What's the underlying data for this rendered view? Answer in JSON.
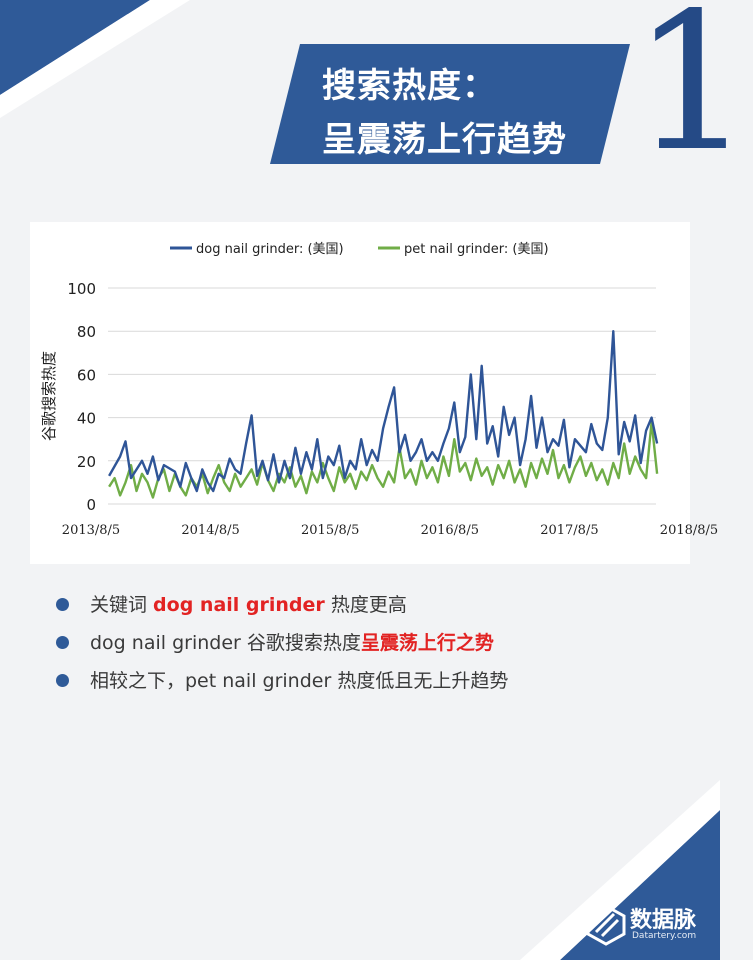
{
  "title": {
    "line1": "搜索热度：",
    "line2": "呈震荡上行趋势",
    "number": "1"
  },
  "chart_data": {
    "type": "line",
    "ylabel": "谷歌搜索热度",
    "ylim": [
      0,
      100
    ],
    "yticks": [
      "0",
      "20",
      "40",
      "60",
      "80",
      "100"
    ],
    "xticks": [
      "2013/8/5",
      "2014/8/5",
      "2015/8/5",
      "2016/8/5",
      "2017/8/5",
      "2018/8/5"
    ],
    "x_range_years": [
      2013.59,
      2018.59
    ],
    "legend_position": "top",
    "grid": true,
    "series": [
      {
        "name": "dog nail grinder: (美国)",
        "color": "#2f5597",
        "points": [
          [
            2013.6,
            13
          ],
          [
            2013.7,
            22
          ],
          [
            2013.75,
            29
          ],
          [
            2013.8,
            12
          ],
          [
            2013.9,
            20
          ],
          [
            2013.95,
            14
          ],
          [
            2014.0,
            22
          ],
          [
            2014.05,
            11
          ],
          [
            2014.1,
            18
          ],
          [
            2014.2,
            15
          ],
          [
            2014.25,
            8
          ],
          [
            2014.3,
            19
          ],
          [
            2014.35,
            12
          ],
          [
            2014.4,
            6
          ],
          [
            2014.45,
            16
          ],
          [
            2014.5,
            10
          ],
          [
            2014.55,
            6
          ],
          [
            2014.6,
            14
          ],
          [
            2014.65,
            12
          ],
          [
            2014.7,
            21
          ],
          [
            2014.75,
            16
          ],
          [
            2014.8,
            14
          ],
          [
            2014.85,
            28
          ],
          [
            2014.9,
            41
          ],
          [
            2014.95,
            13
          ],
          [
            2015.0,
            20
          ],
          [
            2015.05,
            11
          ],
          [
            2015.1,
            23
          ],
          [
            2015.15,
            10
          ],
          [
            2015.2,
            20
          ],
          [
            2015.25,
            12
          ],
          [
            2015.3,
            26
          ],
          [
            2015.35,
            14
          ],
          [
            2015.4,
            24
          ],
          [
            2015.45,
            16
          ],
          [
            2015.5,
            30
          ],
          [
            2015.55,
            12
          ],
          [
            2015.6,
            22
          ],
          [
            2015.65,
            18
          ],
          [
            2015.7,
            27
          ],
          [
            2015.75,
            12
          ],
          [
            2015.8,
            20
          ],
          [
            2015.85,
            16
          ],
          [
            2015.9,
            30
          ],
          [
            2015.95,
            18
          ],
          [
            2016.0,
            25
          ],
          [
            2016.05,
            20
          ],
          [
            2016.1,
            35
          ],
          [
            2016.15,
            45
          ],
          [
            2016.2,
            54
          ],
          [
            2016.25,
            24
          ],
          [
            2016.3,
            32
          ],
          [
            2016.35,
            20
          ],
          [
            2016.4,
            24
          ],
          [
            2016.45,
            30
          ],
          [
            2016.5,
            20
          ],
          [
            2016.55,
            24
          ],
          [
            2016.6,
            20
          ],
          [
            2016.65,
            28
          ],
          [
            2016.7,
            35
          ],
          [
            2016.75,
            47
          ],
          [
            2016.8,
            24
          ],
          [
            2016.85,
            31
          ],
          [
            2016.9,
            60
          ],
          [
            2016.95,
            30
          ],
          [
            2017.0,
            64
          ],
          [
            2017.05,
            28
          ],
          [
            2017.1,
            36
          ],
          [
            2017.15,
            22
          ],
          [
            2017.2,
            45
          ],
          [
            2017.25,
            32
          ],
          [
            2017.3,
            40
          ],
          [
            2017.35,
            18
          ],
          [
            2017.4,
            30
          ],
          [
            2017.45,
            50
          ],
          [
            2017.5,
            26
          ],
          [
            2017.55,
            40
          ],
          [
            2017.6,
            24
          ],
          [
            2017.65,
            30
          ],
          [
            2017.7,
            27
          ],
          [
            2017.75,
            39
          ],
          [
            2017.8,
            17
          ],
          [
            2017.85,
            30
          ],
          [
            2017.9,
            27
          ],
          [
            2017.95,
            24
          ],
          [
            2018.0,
            37
          ],
          [
            2018.05,
            28
          ],
          [
            2018.1,
            25
          ],
          [
            2018.15,
            40
          ],
          [
            2018.2,
            80
          ],
          [
            2018.25,
            23
          ],
          [
            2018.3,
            38
          ],
          [
            2018.35,
            29
          ],
          [
            2018.4,
            41
          ],
          [
            2018.45,
            19
          ],
          [
            2018.5,
            34
          ],
          [
            2018.55,
            40
          ],
          [
            2018.6,
            28
          ]
        ]
      },
      {
        "name": "pet nail grinder: (美国)",
        "color": "#70ad47",
        "points": [
          [
            2013.6,
            8
          ],
          [
            2013.65,
            12
          ],
          [
            2013.7,
            4
          ],
          [
            2013.75,
            10
          ],
          [
            2013.8,
            18
          ],
          [
            2013.85,
            6
          ],
          [
            2013.9,
            14
          ],
          [
            2013.95,
            10
          ],
          [
            2014.0,
            3
          ],
          [
            2014.05,
            12
          ],
          [
            2014.1,
            16
          ],
          [
            2014.15,
            6
          ],
          [
            2014.2,
            14
          ],
          [
            2014.25,
            8
          ],
          [
            2014.3,
            4
          ],
          [
            2014.35,
            12
          ],
          [
            2014.4,
            8
          ],
          [
            2014.45,
            14
          ],
          [
            2014.5,
            5
          ],
          [
            2014.55,
            12
          ],
          [
            2014.6,
            18
          ],
          [
            2014.65,
            10
          ],
          [
            2014.7,
            6
          ],
          [
            2014.75,
            14
          ],
          [
            2014.8,
            8
          ],
          [
            2014.85,
            12
          ],
          [
            2014.9,
            16
          ],
          [
            2014.95,
            9
          ],
          [
            2015.0,
            19
          ],
          [
            2015.05,
            11
          ],
          [
            2015.1,
            6
          ],
          [
            2015.15,
            14
          ],
          [
            2015.2,
            10
          ],
          [
            2015.25,
            17
          ],
          [
            2015.3,
            8
          ],
          [
            2015.35,
            13
          ],
          [
            2015.4,
            5
          ],
          [
            2015.45,
            15
          ],
          [
            2015.5,
            10
          ],
          [
            2015.55,
            19
          ],
          [
            2015.6,
            12
          ],
          [
            2015.65,
            6
          ],
          [
            2015.7,
            17
          ],
          [
            2015.75,
            10
          ],
          [
            2015.8,
            14
          ],
          [
            2015.85,
            7
          ],
          [
            2015.9,
            15
          ],
          [
            2015.95,
            11
          ],
          [
            2016.0,
            18
          ],
          [
            2016.05,
            12
          ],
          [
            2016.1,
            8
          ],
          [
            2016.15,
            15
          ],
          [
            2016.2,
            10
          ],
          [
            2016.25,
            26
          ],
          [
            2016.3,
            12
          ],
          [
            2016.35,
            16
          ],
          [
            2016.4,
            9
          ],
          [
            2016.45,
            20
          ],
          [
            2016.5,
            12
          ],
          [
            2016.55,
            17
          ],
          [
            2016.6,
            10
          ],
          [
            2016.65,
            22
          ],
          [
            2016.7,
            13
          ],
          [
            2016.75,
            30
          ],
          [
            2016.8,
            15
          ],
          [
            2016.85,
            19
          ],
          [
            2016.9,
            11
          ],
          [
            2016.95,
            21
          ],
          [
            2017.0,
            13
          ],
          [
            2017.05,
            17
          ],
          [
            2017.1,
            9
          ],
          [
            2017.15,
            18
          ],
          [
            2017.2,
            12
          ],
          [
            2017.25,
            20
          ],
          [
            2017.3,
            10
          ],
          [
            2017.35,
            16
          ],
          [
            2017.4,
            8
          ],
          [
            2017.45,
            19
          ],
          [
            2017.5,
            12
          ],
          [
            2017.55,
            21
          ],
          [
            2017.6,
            14
          ],
          [
            2017.65,
            25
          ],
          [
            2017.7,
            12
          ],
          [
            2017.75,
            18
          ],
          [
            2017.8,
            10
          ],
          [
            2017.85,
            17
          ],
          [
            2017.9,
            22
          ],
          [
            2017.95,
            13
          ],
          [
            2018.0,
            19
          ],
          [
            2018.05,
            11
          ],
          [
            2018.1,
            16
          ],
          [
            2018.15,
            9
          ],
          [
            2018.2,
            19
          ],
          [
            2018.25,
            12
          ],
          [
            2018.3,
            28
          ],
          [
            2018.35,
            14
          ],
          [
            2018.4,
            22
          ],
          [
            2018.45,
            16
          ],
          [
            2018.5,
            12
          ],
          [
            2018.55,
            38
          ],
          [
            2018.6,
            14
          ]
        ]
      }
    ]
  },
  "bullets": [
    {
      "parts": [
        {
          "text": "关键词 ",
          "hl": false
        },
        {
          "text": "dog nail grinder",
          "hl": true
        },
        {
          "text": " 热度更高",
          "hl": false
        }
      ]
    },
    {
      "parts": [
        {
          "text": "dog nail grinder 谷歌搜索热度",
          "hl": false
        },
        {
          "text": "呈震荡上行之势",
          "hl": true
        }
      ]
    },
    {
      "parts": [
        {
          "text": "相较之下，pet nail grinder 热度低且无上升趋势",
          "hl": false
        }
      ]
    }
  ],
  "brand": {
    "name": "数据脉",
    "sub": "Datartery.com"
  }
}
